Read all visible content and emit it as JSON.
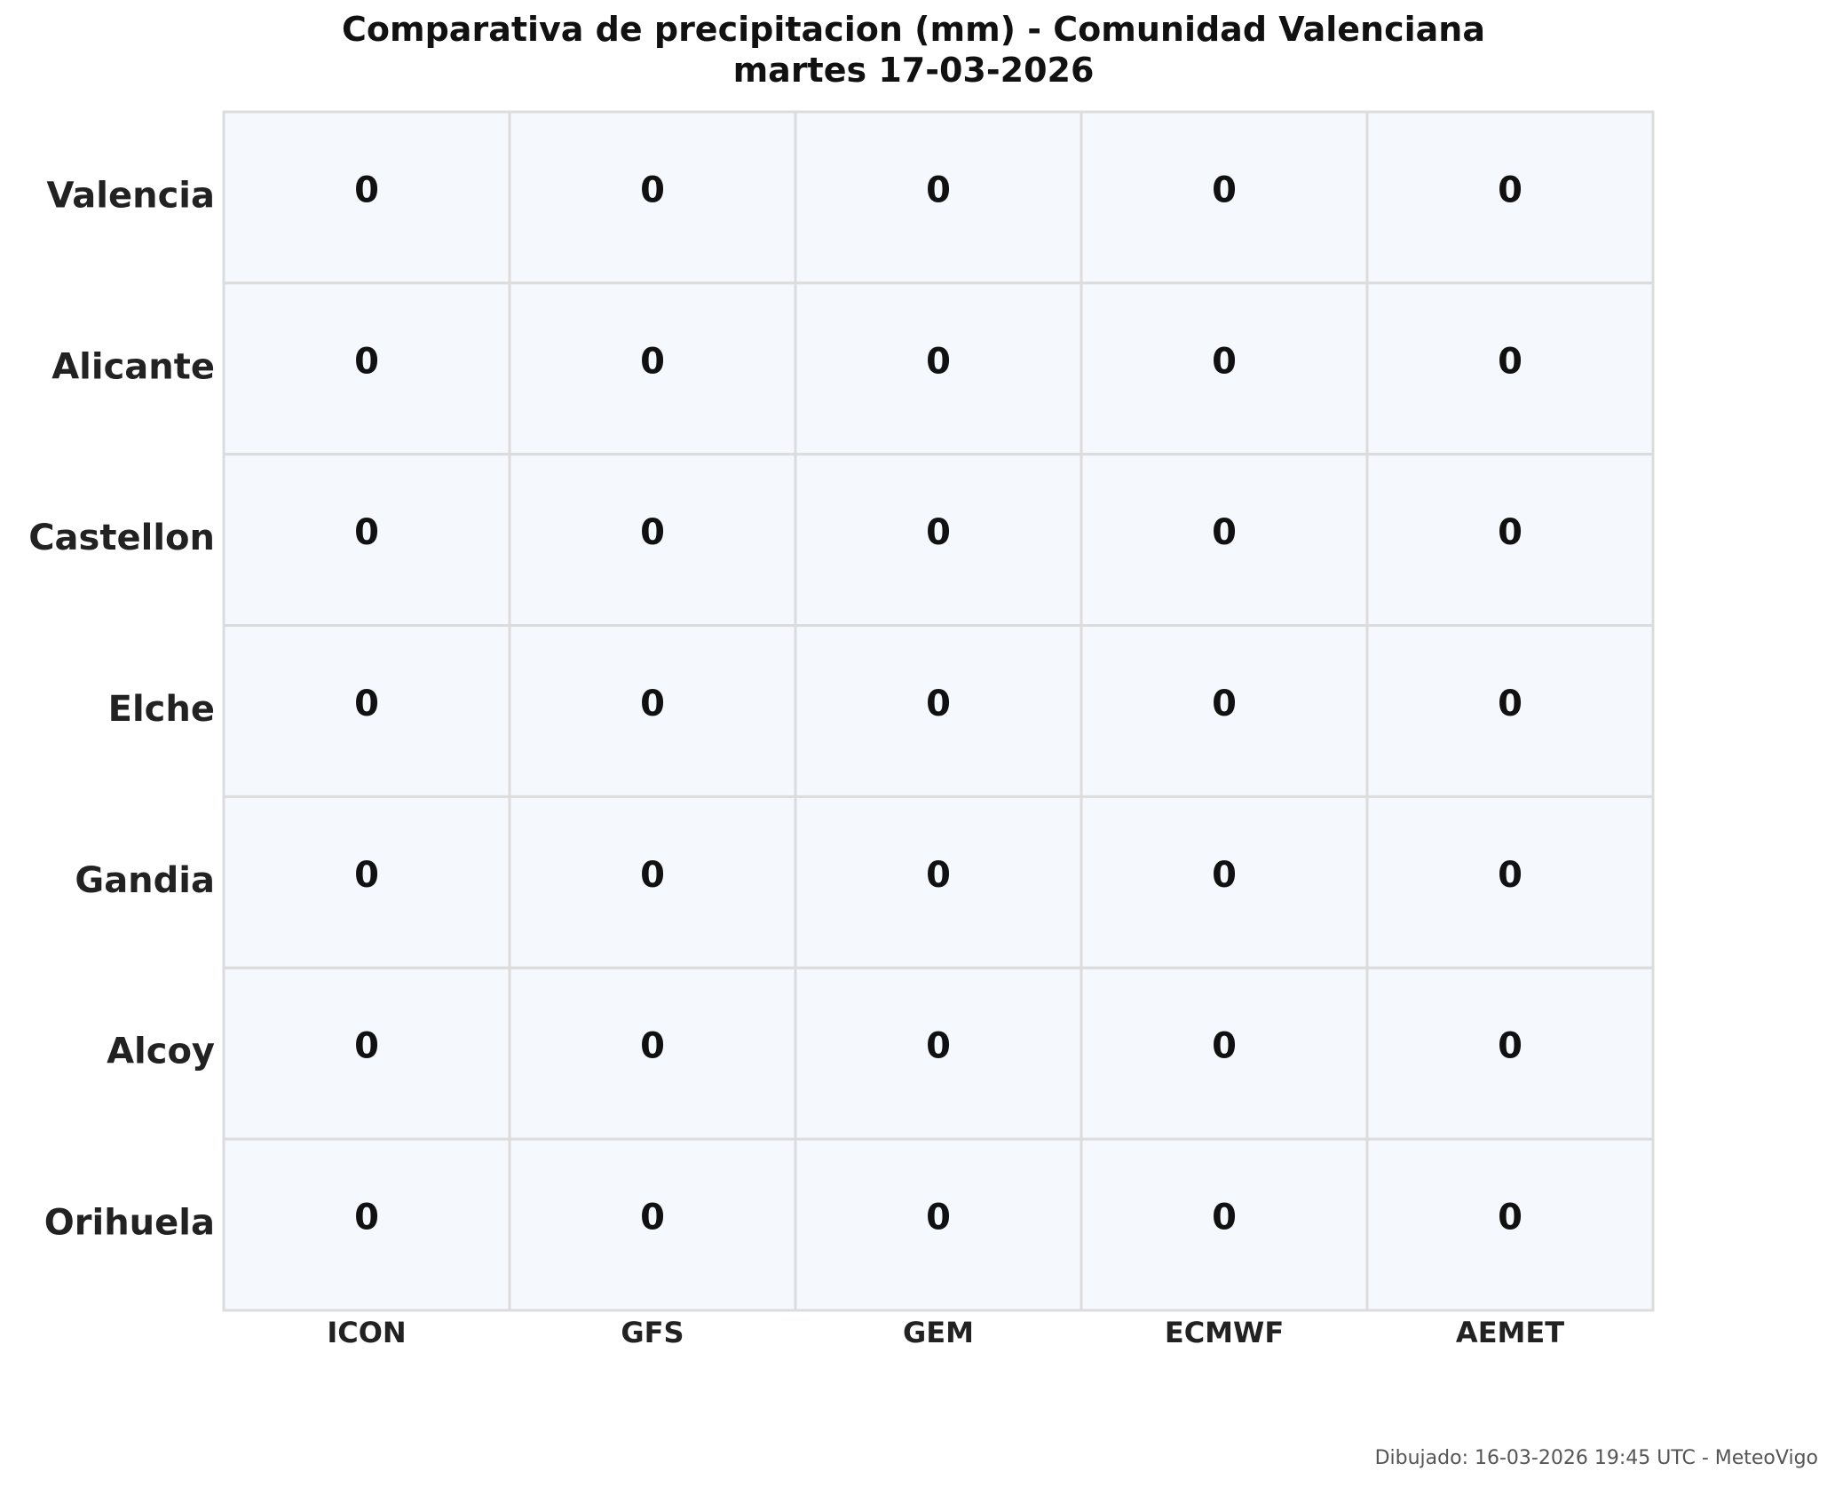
{
  "chart_data": {
    "type": "heatmap",
    "title": "Comparativa de precipitacion (mm) - Comunidad Valenciana",
    "subtitle": "martes 17-03-2026",
    "columns": [
      "ICON",
      "GFS",
      "GEM",
      "ECMWF",
      "AEMET"
    ],
    "rows": [
      "Valencia",
      "Alicante",
      "Castellon",
      "Elche",
      "Gandia",
      "Alcoy",
      "Orihuela"
    ],
    "values": [
      [
        0,
        0,
        0,
        0,
        0
      ],
      [
        0,
        0,
        0,
        0,
        0
      ],
      [
        0,
        0,
        0,
        0,
        0
      ],
      [
        0,
        0,
        0,
        0,
        0
      ],
      [
        0,
        0,
        0,
        0,
        0
      ],
      [
        0,
        0,
        0,
        0,
        0
      ],
      [
        0,
        0,
        0,
        0,
        0
      ]
    ],
    "cell_color": "#f5f9fe",
    "grid_color": "#dcdcdc",
    "value_color": "#111111"
  },
  "footer": "Dibujado: 16-03-2026 19:45 UTC - MeteoVigo"
}
